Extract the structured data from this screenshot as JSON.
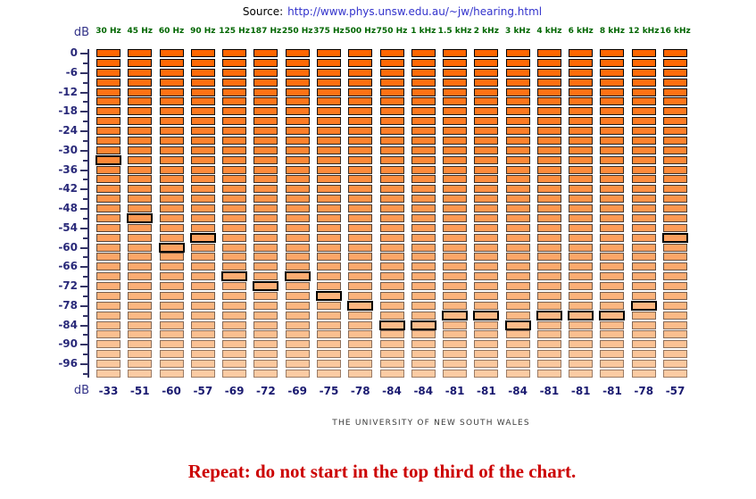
{
  "source": {
    "label": "Source:",
    "url": "http://www.phys.unsw.edu.au/~jw/hearing.html"
  },
  "axis": {
    "unit_top": "dB",
    "unit_bottom": "dB",
    "max_db": 0,
    "min_db": -99,
    "block_step_db": 3,
    "labeled_ticks": [
      0,
      -6,
      -12,
      -18,
      -24,
      -30,
      -36,
      -42,
      -48,
      -54,
      -60,
      -66,
      -72,
      -78,
      -84,
      -90,
      -96
    ]
  },
  "chart_data": {
    "type": "table",
    "title": "Hearing response test grid",
    "categories": [
      "30 Hz",
      "45 Hz",
      "60 Hz",
      "90 Hz",
      "125 Hz",
      "187 Hz",
      "250 Hz",
      "375 Hz",
      "500 Hz",
      "750 Hz",
      "1 kHz",
      "1.5 kHz",
      "2 kHz",
      "3 kHz",
      "4 kHz",
      "6 kHz",
      "8 kHz",
      "12 kHz",
      "16 kHz"
    ],
    "values": [
      -33,
      -51,
      -60,
      -57,
      -69,
      -72,
      -69,
      -75,
      -78,
      -84,
      -84,
      -81,
      -81,
      -84,
      -81,
      -81,
      -81,
      -78,
      -57
    ],
    "ylabel": "dB",
    "ylim": [
      -99,
      0
    ],
    "cell_height_db": 3,
    "selection_style": "outlined-block",
    "legend_position": "none",
    "grid": "off"
  },
  "footer": {
    "university": "THE UNIVERSITY OF NEW SOUTH WALES",
    "warning": "Repeat: do not start in the top third of the chart."
  },
  "colors": {
    "block_top_fill": "#ff6600",
    "block_bottom_fill": "#fbcba3",
    "block_top_border": "#000000",
    "block_bottom_border": "#9a7b66",
    "selected_border": "#000000",
    "axis": "#333366",
    "axis_label": "#2a2a7a",
    "unit_label": "#333388",
    "header_label": "#006600",
    "value_label": "#1a1a70",
    "link": "#3333cc",
    "source_text": "#000000",
    "university_text": "#3a3a3a",
    "warning_text": "#cc0000"
  }
}
